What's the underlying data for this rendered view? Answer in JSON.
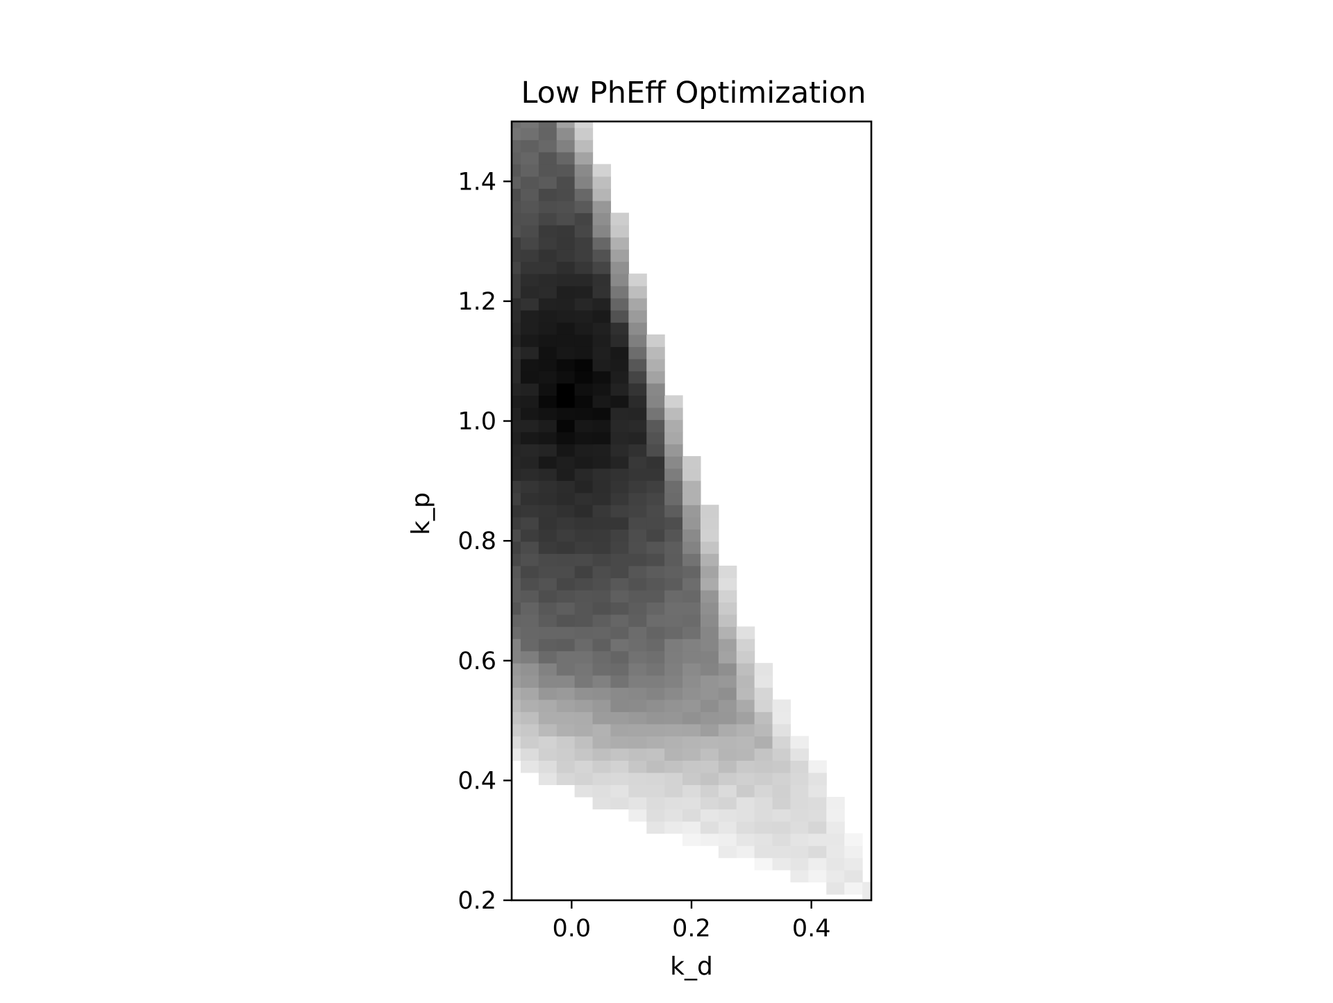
{
  "chart_data": {
    "type": "heatmap",
    "title": "Low PhEff Optimization",
    "xlabel": "k_d",
    "ylabel": "k_p",
    "xlim": [
      -0.1,
      0.5
    ],
    "ylim": [
      0.2,
      1.5
    ],
    "xticks": [
      0.0,
      0.2,
      0.4
    ],
    "xtick_labels": [
      "0.0",
      "0.2",
      "0.4"
    ],
    "yticks": [
      0.2,
      0.4,
      0.6,
      0.8,
      1.0,
      1.2,
      1.4
    ],
    "ytick_labels": [
      "0.2",
      "0.4",
      "0.6",
      "0.8",
      "1.0",
      "1.2",
      "1.4"
    ],
    "colormap": "gray_r",
    "grid": false,
    "legend": "none",
    "grid_size": {
      "kd_cells": 21,
      "kp_cells": 65
    },
    "kd_values": [
      -0.1,
      -0.07,
      -0.04,
      -0.01,
      0.02,
      0.05,
      0.08,
      0.11,
      0.14,
      0.17,
      0.2,
      0.23,
      0.26,
      0.29,
      0.32,
      0.35,
      0.38,
      0.41,
      0.44,
      0.47,
      0.5
    ],
    "feasible_upper_kd": [
      [
        0.21,
        0.5
      ],
      [
        0.29,
        0.47
      ],
      [
        0.36,
        0.44
      ],
      [
        0.4,
        0.42
      ],
      [
        0.45,
        0.39
      ],
      [
        0.5,
        0.36
      ],
      [
        0.55,
        0.33
      ],
      [
        0.6,
        0.31
      ],
      [
        0.65,
        0.29
      ],
      [
        0.7,
        0.27
      ],
      [
        0.8,
        0.24
      ],
      [
        0.9,
        0.21
      ],
      [
        1.0,
        0.18
      ],
      [
        1.1,
        0.15
      ],
      [
        1.2,
        0.12
      ],
      [
        1.3,
        0.09
      ],
      [
        1.4,
        0.06
      ],
      [
        1.5,
        0.02
      ]
    ],
    "optimum": {
      "kd": 0.0,
      "kp": 1.05
    },
    "values_note": "per-cell intensity 0 (white) to 1 (black)"
  }
}
